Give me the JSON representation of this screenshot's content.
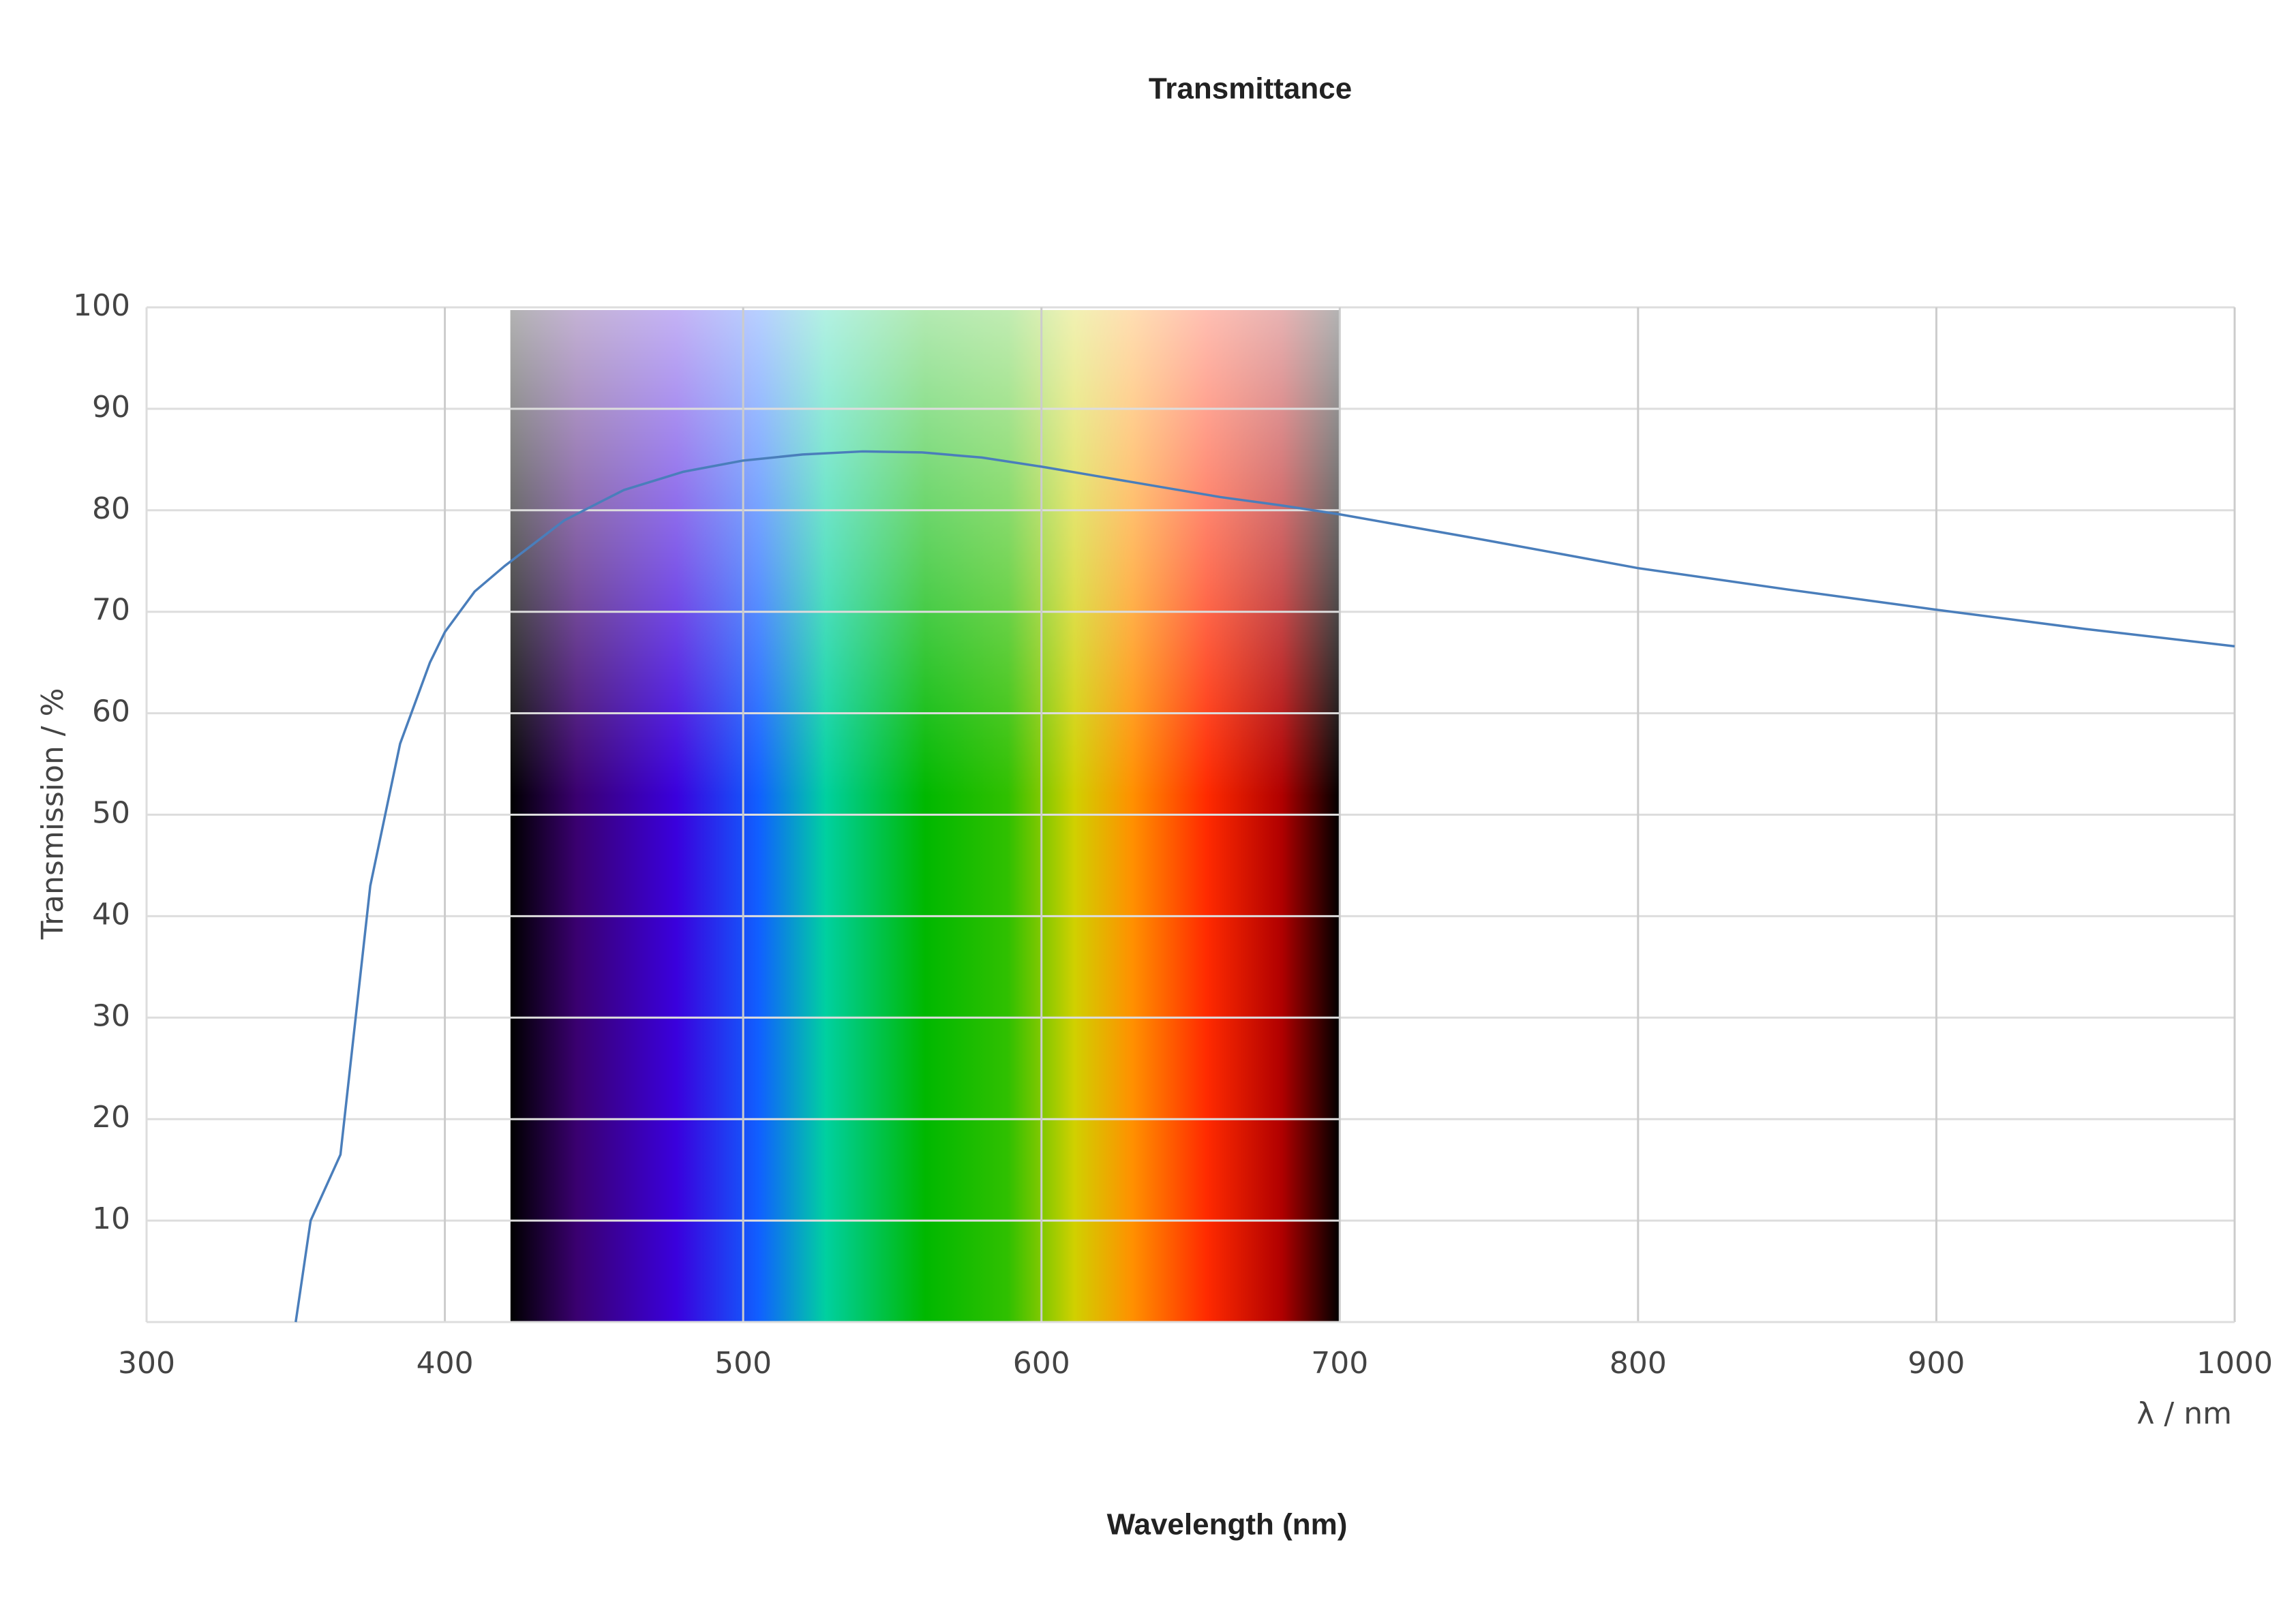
{
  "chart_data": {
    "type": "line",
    "title": "Transmittance",
    "xlabel": "λ / nm",
    "ylabel": "Transmission / %",
    "caption": "Wavelength (nm)",
    "x": [
      350,
      355,
      365,
      375,
      385,
      395,
      400,
      410,
      420,
      440,
      460,
      480,
      500,
      520,
      540,
      560,
      580,
      600,
      620,
      640,
      660,
      680,
      700,
      750,
      800,
      850,
      900,
      950,
      1000
    ],
    "series": [
      {
        "color": "#4a7ebb",
        "values": [
          0,
          10,
          16.5,
          43,
          57,
          65,
          68,
          72,
          74.5,
          79,
          82,
          83.8,
          84.9,
          85.5,
          85.8,
          85.7,
          85.2,
          84.3,
          83.3,
          82.3,
          81.3,
          80.5,
          79.6,
          77,
          74.3,
          72.2,
          70.2,
          68.3,
          66.6
        ]
      }
    ],
    "spectrum_range": [
      422,
      700
    ],
    "xlim": [
      300,
      1000
    ],
    "xticks": [
      300,
      400,
      500,
      600,
      700,
      800,
      900,
      1000
    ],
    "ylim": [
      0,
      100
    ],
    "yticks": [
      10,
      20,
      30,
      40,
      50,
      60,
      70,
      80,
      90,
      100
    ],
    "grid": true
  }
}
